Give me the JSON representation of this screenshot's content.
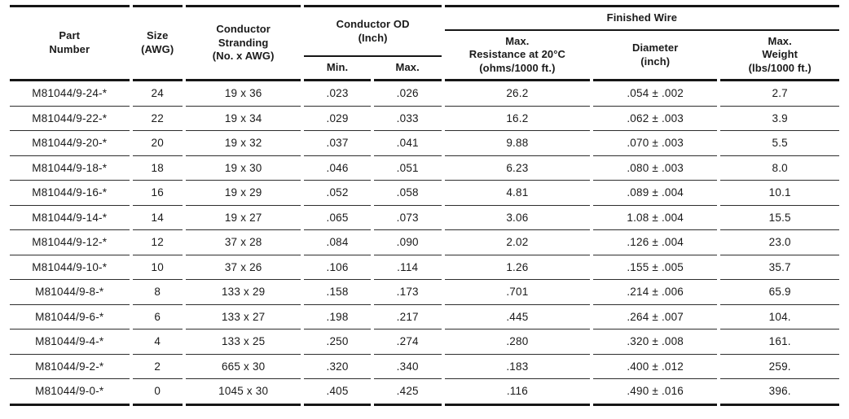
{
  "table": {
    "headers": {
      "part_number": "Part\nNumber",
      "size": "Size\n(AWG)",
      "stranding": "Conductor\nStranding\n(No. x AWG)",
      "conductor_od": "Conductor OD\n(Inch)",
      "od_min": "Min.",
      "od_max": "Max.",
      "finished_wire": "Finished Wire",
      "resistance": "Max.\nResistance at 20°C\n(ohms/1000 ft.)",
      "diameter": "Diameter\n(inch)",
      "weight": "Max.\nWeight\n(lbs/1000 ft.)"
    },
    "rows": [
      [
        "M81044/9-24-*",
        "24",
        "19 x 36",
        ".023",
        ".026",
        "26.2",
        ".054 ± .002",
        "2.7"
      ],
      [
        "M81044/9-22-*",
        "22",
        "19 x 34",
        ".029",
        ".033",
        "16.2",
        ".062 ± .003",
        "3.9"
      ],
      [
        "M81044/9-20-*",
        "20",
        "19 x 32",
        ".037",
        ".041",
        "9.88",
        ".070 ± .003",
        "5.5"
      ],
      [
        "M81044/9-18-*",
        "18",
        "19 x 30",
        ".046",
        ".051",
        "6.23",
        ".080 ± .003",
        "8.0"
      ],
      [
        "M81044/9-16-*",
        "16",
        "19 x 29",
        ".052",
        ".058",
        "4.81",
        ".089 ± .004",
        "10.1"
      ],
      [
        "M81044/9-14-*",
        "14",
        "19 x 27",
        ".065",
        ".073",
        "3.06",
        "1.08 ± .004",
        "15.5"
      ],
      [
        "M81044/9-12-*",
        "12",
        "37 x 28",
        ".084",
        ".090",
        "2.02",
        ".126 ± .004",
        "23.0"
      ],
      [
        "M81044/9-10-*",
        "10",
        "37 x 26",
        ".106",
        ".114",
        "1.26",
        ".155 ± .005",
        "35.7"
      ],
      [
        "M81044/9-8-*",
        "8",
        "133 x 29",
        ".158",
        ".173",
        ".701",
        ".214 ± .006",
        "65.9"
      ],
      [
        "M81044/9-6-*",
        "6",
        "133 x 27",
        ".198",
        ".217",
        ".445",
        ".264 ± .007",
        "104."
      ],
      [
        "M81044/9-4-*",
        "4",
        "133 x 25",
        ".250",
        ".274",
        ".280",
        ".320 ± .008",
        "161."
      ],
      [
        "M81044/9-2-*",
        "2",
        "665 x 30",
        ".320",
        ".340",
        ".183",
        ".400 ± .012",
        "259."
      ],
      [
        "M81044/9-0-*",
        "0",
        "1045 x 30",
        ".405",
        ".425",
        ".116",
        ".490 ± .016",
        "396."
      ]
    ],
    "colors": {
      "text": "#1a1a1a",
      "rule_thick": "#161616",
      "rule_thin": "#2d2d2d",
      "background": "#ffffff"
    }
  }
}
